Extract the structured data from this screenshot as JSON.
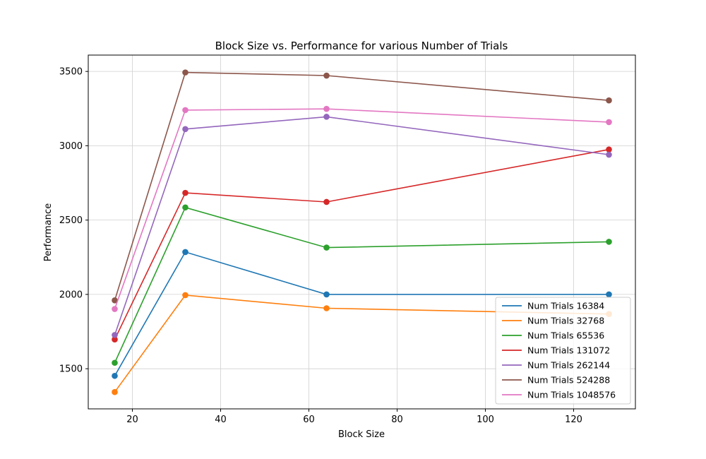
{
  "chart_data": {
    "type": "line",
    "title": "Block Size vs. Performance for various Number of Trials",
    "xlabel": "Block Size",
    "ylabel": "Performance",
    "x": [
      16,
      32,
      64,
      128
    ],
    "xlim": [
      10,
      134
    ],
    "ylim": [
      1230,
      3610
    ],
    "xticks": [
      20,
      40,
      60,
      80,
      100,
      120
    ],
    "yticks": [
      1500,
      2000,
      2500,
      3000,
      3500
    ],
    "grid": true,
    "legend_position": "lower right",
    "series": [
      {
        "name": "Num Trials 16384",
        "color": "#1f77b4",
        "values": [
          1452,
          2285,
          2000,
          2000
        ]
      },
      {
        "name": "Num Trials 32768",
        "color": "#ff7f0e",
        "values": [
          1343,
          1995,
          1907,
          1868
        ]
      },
      {
        "name": "Num Trials 65536",
        "color": "#2ca02c",
        "values": [
          1540,
          2585,
          2315,
          2354
        ]
      },
      {
        "name": "Num Trials 131072",
        "color": "#d62728",
        "values": [
          1697,
          2683,
          2622,
          2975
        ]
      },
      {
        "name": "Num Trials 262144",
        "color": "#9467bd",
        "values": [
          1727,
          3112,
          3195,
          2940
        ]
      },
      {
        "name": "Num Trials 524288",
        "color": "#8c564b",
        "values": [
          1960,
          3493,
          3472,
          3305
        ]
      },
      {
        "name": "Num Trials 1048576",
        "color": "#e377c2",
        "values": [
          1902,
          3240,
          3248,
          3159
        ]
      }
    ]
  }
}
